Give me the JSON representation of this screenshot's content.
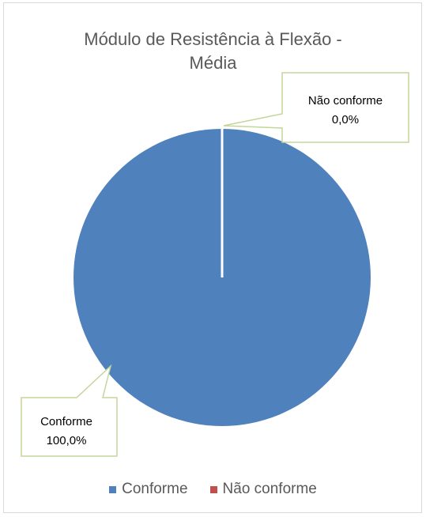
{
  "chart_data": {
    "type": "pie",
    "title_lines": [
      "Módulo de Resistência à Flexão -",
      "Média"
    ],
    "categories": [
      "Conforme",
      "Não conforme"
    ],
    "values": [
      100.0,
      0.0
    ],
    "colors": [
      "#4f81bd",
      "#c0504d"
    ],
    "data_labels": [
      {
        "name": "Conforme",
        "value": "100,0%"
      },
      {
        "name": "Não conforme",
        "value": "0,0%"
      }
    ],
    "legend": {
      "position": "bottom",
      "items": [
        "Conforme",
        "Não conforme"
      ]
    }
  },
  "callout_border_color": "#c3d69b"
}
